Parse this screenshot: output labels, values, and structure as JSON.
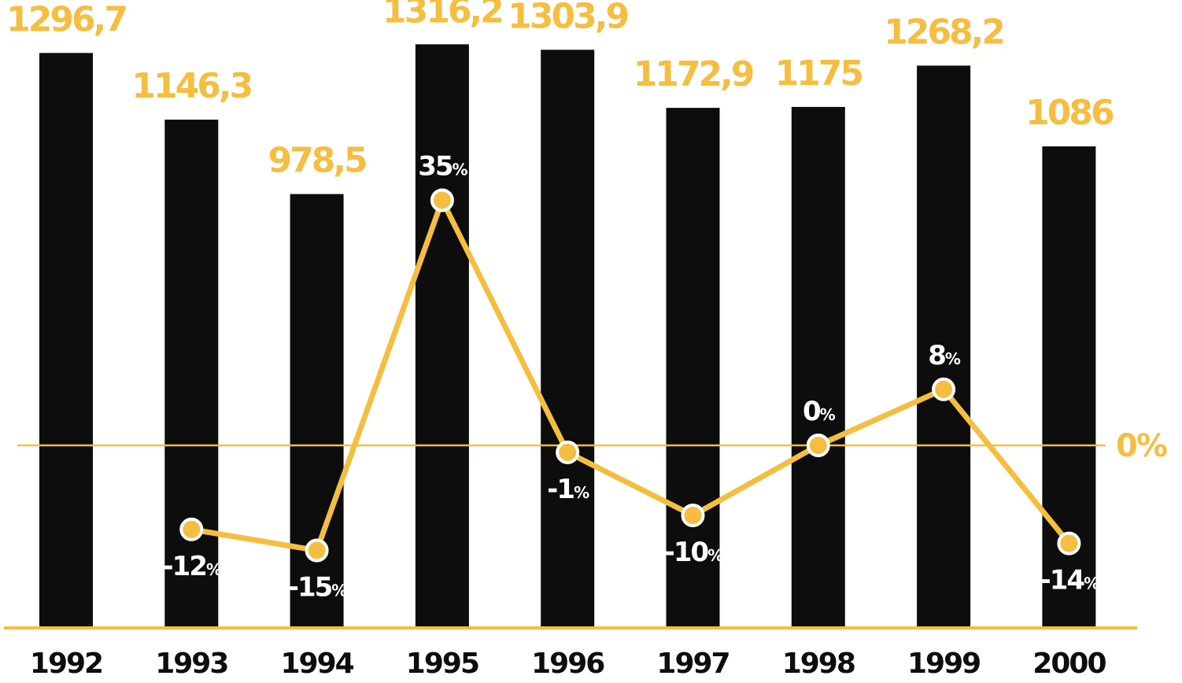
{
  "colors": {
    "bar": "#0d0d0d",
    "accent": "#f5be41",
    "marker_fill": "#f5be41",
    "marker_stroke": "#ffffff",
    "pct_text": "#ffffff"
  },
  "zero_line_label": "0%",
  "chart_data": {
    "type": "bar",
    "categories": [
      "1992",
      "1993",
      "1994",
      "1995",
      "1996",
      "1997",
      "1998",
      "1999",
      "2000"
    ],
    "values": [
      1296.7,
      1146.3,
      978.5,
      1316.2,
      1303.9,
      1172.9,
      1175,
      1268.2,
      1086
    ],
    "value_labels": [
      "1296,7",
      "1146,3",
      "978,5",
      "1316,2",
      "1303,9",
      "1172,9",
      "1175",
      "1268,2",
      "1086"
    ],
    "title": "",
    "xlabel": "",
    "ylabel": "",
    "grid": false,
    "overlay_series": {
      "type": "line",
      "categories": [
        "1993",
        "1994",
        "1995",
        "1996",
        "1997",
        "1998",
        "1999",
        "2000"
      ],
      "values": [
        -12,
        -15,
        35,
        -1,
        -10,
        0,
        8,
        -14
      ],
      "labels": [
        "-12",
        "-15",
        "35",
        "-1",
        "-10",
        "0",
        "8",
        "-14"
      ],
      "unit": "%",
      "label_position": [
        "below",
        "below",
        "above",
        "below",
        "below",
        "above",
        "above",
        "below"
      ],
      "reference_line": 0
    }
  }
}
